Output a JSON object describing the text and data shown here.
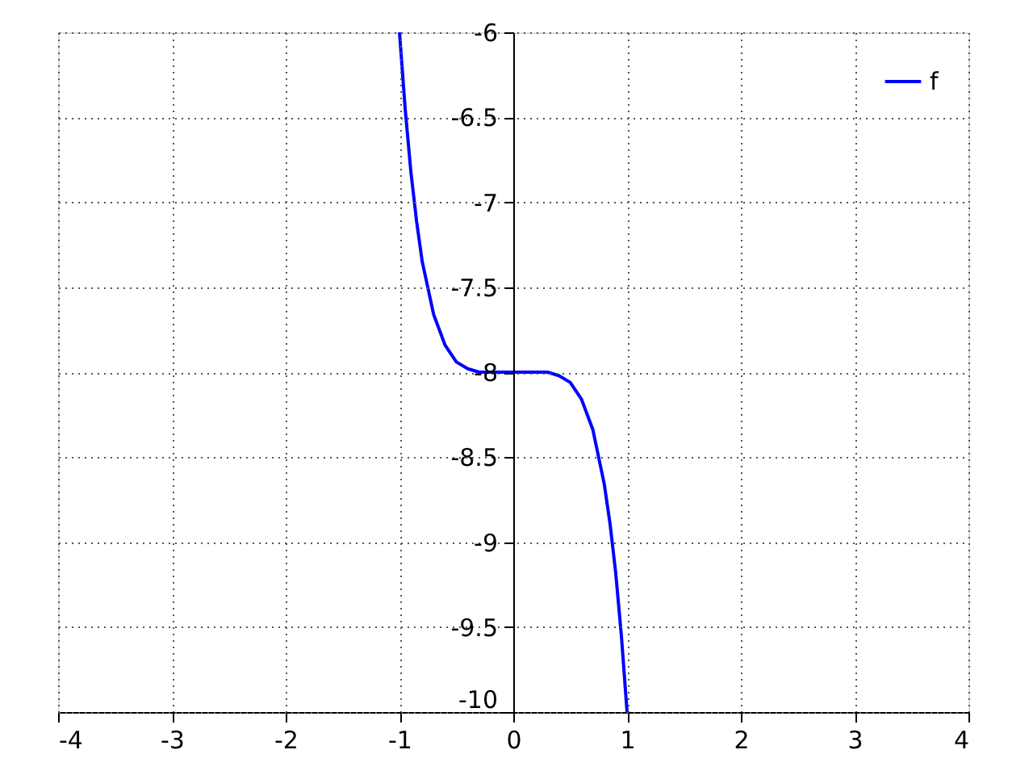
{
  "chart_data": {
    "type": "line",
    "xlim": [
      -4,
      4
    ],
    "xticks": [
      -4,
      -3,
      -2,
      -1,
      0,
      1,
      2,
      3,
      4
    ],
    "ylim": [
      -10,
      -6
    ],
    "yticks": [
      -10,
      -9.5,
      -9,
      -8.5,
      -8,
      -7.5,
      -7,
      -6.5,
      -6
    ],
    "grid": true,
    "legend": "top right",
    "marker": "none",
    "line_style": "solid",
    "series": [
      {
        "name": "f",
        "color": "#0000ff",
        "x": [
          -1,
          -0.95,
          -0.9,
          -0.85,
          -0.8,
          -0.7,
          -0.6,
          -0.5,
          -0.4,
          -0.3,
          -0.2,
          0,
          0.2,
          0.3,
          0.4,
          0.5,
          0.6,
          0.7,
          0.8,
          0.85,
          0.9,
          0.95,
          1
        ],
        "values": [
          -6,
          -6.45,
          -6.82,
          -7.11,
          -7.35,
          -7.66,
          -7.84,
          -7.94,
          -7.98,
          -8.0,
          -8.0,
          -8.0,
          -8.0,
          -8.0,
          -8.02,
          -8.06,
          -8.16,
          -8.34,
          -8.66,
          -8.89,
          -9.18,
          -9.55,
          -10
        ]
      }
    ]
  }
}
